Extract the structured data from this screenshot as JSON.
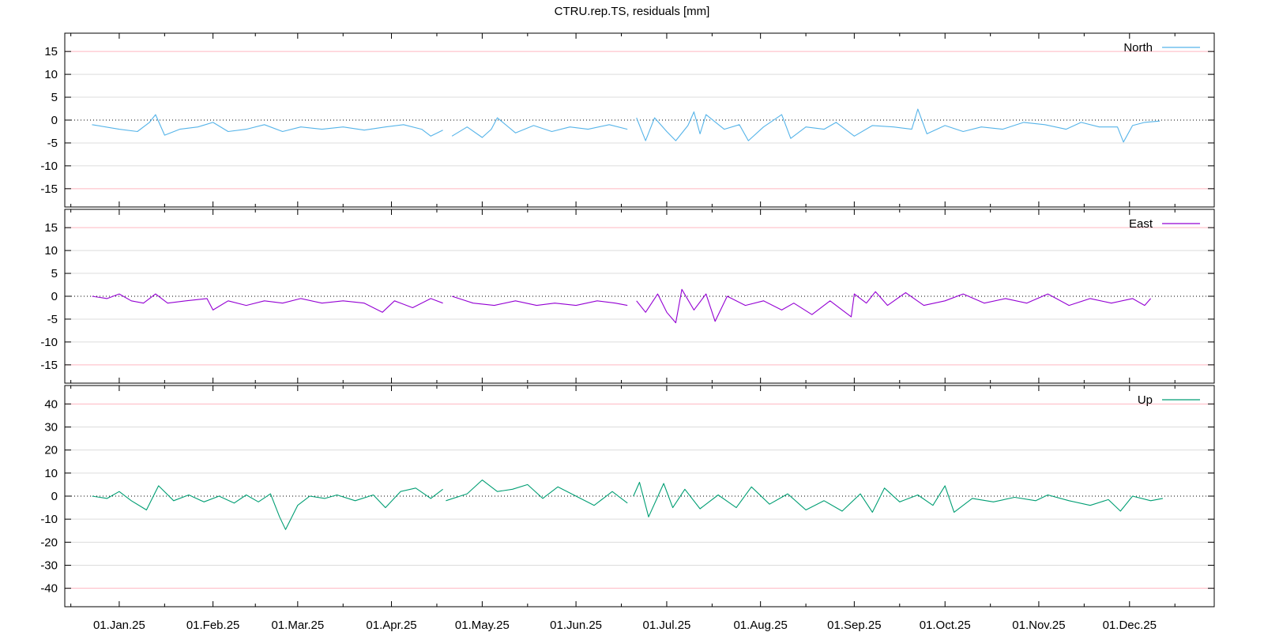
{
  "title": "CTRU.rep.TS, residuals [mm]",
  "x_tick_labels": [
    "01.Jan.25",
    "01.Feb.25",
    "01.Mar.25",
    "01.Apr.25",
    "01.May.25",
    "01.Jun.25",
    "01.Jul.25",
    "01.Aug.25",
    "01.Sep.25",
    "01.Oct.25",
    "01.Nov.25",
    "01.Dec.25"
  ],
  "chart_data": [
    {
      "type": "line",
      "series": [
        {
          "name": "North",
          "color": "#56b4e9",
          "points": [
            [
              "2024-12-23",
              -1.0
            ],
            [
              "2025-01-01",
              -2.0
            ],
            [
              "2025-01-07",
              -2.5
            ],
            [
              "2025-01-11",
              -0.5
            ],
            [
              "2025-01-13",
              1.2
            ],
            [
              "2025-01-16",
              -3.3
            ],
            [
              "2025-01-21",
              -2.0
            ],
            [
              "2025-01-27",
              -1.5
            ],
            [
              "2025-02-01",
              -0.5
            ],
            [
              "2025-02-06",
              -2.5
            ],
            [
              "2025-02-12",
              -2.0
            ],
            [
              "2025-02-18",
              -1.0
            ],
            [
              "2025-02-24",
              -2.5
            ],
            [
              "2025-03-02",
              -1.5
            ],
            [
              "2025-03-09",
              -2.0
            ],
            [
              "2025-03-16",
              -1.5
            ],
            [
              "2025-03-23",
              -2.2
            ],
            [
              "2025-03-30",
              -1.5
            ],
            [
              "2025-04-05",
              -1.0
            ],
            [
              "2025-04-11",
              -2.0
            ],
            [
              "2025-04-14",
              -3.5
            ],
            [
              "2025-04-18",
              -2.2
            ],
            [
              null,
              null
            ],
            [
              "2025-04-21",
              -3.5
            ],
            [
              "2025-04-26",
              -1.5
            ],
            [
              "2025-05-01",
              -3.8
            ],
            [
              "2025-05-04",
              -2.0
            ],
            [
              "2025-05-06",
              0.5
            ],
            [
              "2025-05-12",
              -2.8
            ],
            [
              "2025-05-18",
              -1.2
            ],
            [
              "2025-05-24",
              -2.5
            ],
            [
              "2025-05-30",
              -1.5
            ],
            [
              "2025-06-05",
              -2.0
            ],
            [
              "2025-06-12",
              -1.0
            ],
            [
              "2025-06-18",
              -2.0
            ],
            [
              null,
              null
            ],
            [
              "2025-06-21",
              0.5
            ],
            [
              "2025-06-24",
              -4.5
            ],
            [
              "2025-06-27",
              0.5
            ],
            [
              "2025-07-01",
              -2.5
            ],
            [
              "2025-07-04",
              -4.5
            ],
            [
              "2025-07-08",
              -1.2
            ],
            [
              "2025-07-10",
              1.8
            ],
            [
              "2025-07-12",
              -3.0
            ],
            [
              "2025-07-14",
              1.2
            ],
            [
              "2025-07-20",
              -2.0
            ],
            [
              "2025-07-25",
              -1.0
            ],
            [
              "2025-07-28",
              -4.5
            ],
            [
              "2025-08-02",
              -1.5
            ],
            [
              "2025-08-08",
              1.2
            ],
            [
              "2025-08-11",
              -4.0
            ],
            [
              "2025-08-16",
              -1.5
            ],
            [
              "2025-08-22",
              -2.0
            ],
            [
              "2025-08-26",
              -0.5
            ],
            [
              "2025-09-01",
              -3.5
            ],
            [
              "2025-09-07",
              -1.2
            ],
            [
              "2025-09-14",
              -1.5
            ],
            [
              "2025-09-20",
              -2.0
            ],
            [
              "2025-09-22",
              2.4
            ],
            [
              "2025-09-25",
              -3.0
            ],
            [
              "2025-10-01",
              -1.2
            ],
            [
              "2025-10-07",
              -2.5
            ],
            [
              "2025-10-13",
              -1.5
            ],
            [
              "2025-10-20",
              -2.0
            ],
            [
              "2025-10-27",
              -0.5
            ],
            [
              "2025-11-03",
              -1.0
            ],
            [
              "2025-11-10",
              -2.0
            ],
            [
              "2025-11-15",
              -0.5
            ],
            [
              "2025-11-21",
              -1.5
            ],
            [
              "2025-11-27",
              -1.5
            ],
            [
              "2025-11-29",
              -4.8
            ],
            [
              "2025-12-02",
              -1.2
            ],
            [
              "2025-12-06",
              -0.5
            ],
            [
              "2025-12-11",
              -0.2
            ]
          ]
        }
      ],
      "ylim": [
        -19,
        19
      ],
      "yticks": [
        -15,
        -10,
        -5,
        0,
        5,
        10,
        15
      ],
      "legend": "top-right"
    },
    {
      "type": "line",
      "series": [
        {
          "name": "East",
          "color": "#9400d3",
          "points": [
            [
              "2024-12-23",
              0.0
            ],
            [
              "2024-12-28",
              -0.5
            ],
            [
              "2025-01-01",
              0.5
            ],
            [
              "2025-01-05",
              -1.0
            ],
            [
              "2025-01-09",
              -1.5
            ],
            [
              "2025-01-13",
              0.5
            ],
            [
              "2025-01-17",
              -1.5
            ],
            [
              "2025-01-23",
              -1.0
            ],
            [
              "2025-01-30",
              -0.5
            ],
            [
              "2025-02-01",
              -3.0
            ],
            [
              "2025-02-06",
              -1.0
            ],
            [
              "2025-02-12",
              -2.0
            ],
            [
              "2025-02-18",
              -1.0
            ],
            [
              "2025-02-24",
              -1.5
            ],
            [
              "2025-03-02",
              -0.5
            ],
            [
              "2025-03-09",
              -1.5
            ],
            [
              "2025-03-16",
              -1.0
            ],
            [
              "2025-03-23",
              -1.5
            ],
            [
              "2025-03-29",
              -3.5
            ],
            [
              "2025-04-02",
              -1.0
            ],
            [
              "2025-04-08",
              -2.5
            ],
            [
              "2025-04-14",
              -0.5
            ],
            [
              "2025-04-18",
              -1.5
            ],
            [
              null,
              null
            ],
            [
              "2025-04-21",
              0.0
            ],
            [
              "2025-04-28",
              -1.5
            ],
            [
              "2025-05-05",
              -2.0
            ],
            [
              "2025-05-12",
              -1.0
            ],
            [
              "2025-05-19",
              -2.0
            ],
            [
              "2025-05-25",
              -1.5
            ],
            [
              "2025-06-01",
              -2.0
            ],
            [
              "2025-06-08",
              -1.0
            ],
            [
              "2025-06-14",
              -1.5
            ],
            [
              "2025-06-18",
              -2.0
            ],
            [
              null,
              null
            ],
            [
              "2025-06-21",
              -1.0
            ],
            [
              "2025-06-24",
              -3.5
            ],
            [
              "2025-06-28",
              0.5
            ],
            [
              "2025-07-01",
              -3.5
            ],
            [
              "2025-07-04",
              -5.8
            ],
            [
              "2025-07-06",
              1.5
            ],
            [
              "2025-07-10",
              -3.0
            ],
            [
              "2025-07-14",
              0.5
            ],
            [
              "2025-07-17",
              -5.5
            ],
            [
              "2025-07-21",
              0.0
            ],
            [
              "2025-07-27",
              -2.0
            ],
            [
              "2025-08-02",
              -1.0
            ],
            [
              "2025-08-08",
              -3.0
            ],
            [
              "2025-08-12",
              -1.5
            ],
            [
              "2025-08-18",
              -4.0
            ],
            [
              "2025-08-24",
              -1.0
            ],
            [
              "2025-08-31",
              -4.5
            ],
            [
              "2025-09-01",
              0.5
            ],
            [
              "2025-09-05",
              -1.5
            ],
            [
              "2025-09-08",
              1.0
            ],
            [
              "2025-09-12",
              -2.0
            ],
            [
              "2025-09-18",
              0.8
            ],
            [
              "2025-09-24",
              -2.0
            ],
            [
              "2025-10-01",
              -1.0
            ],
            [
              "2025-10-07",
              0.5
            ],
            [
              "2025-10-14",
              -1.5
            ],
            [
              "2025-10-21",
              -0.5
            ],
            [
              "2025-10-28",
              -1.5
            ],
            [
              "2025-11-04",
              0.5
            ],
            [
              "2025-11-11",
              -2.0
            ],
            [
              "2025-11-18",
              -0.5
            ],
            [
              "2025-11-25",
              -1.5
            ],
            [
              "2025-12-02",
              -0.5
            ],
            [
              "2025-12-06",
              -2.0
            ],
            [
              "2025-12-08",
              -0.5
            ]
          ]
        }
      ],
      "ylim": [
        -19,
        19
      ],
      "yticks": [
        -15,
        -10,
        -5,
        0,
        5,
        10,
        15
      ],
      "legend": "top-right"
    },
    {
      "type": "line",
      "series": [
        {
          "name": "Up",
          "color": "#009e73",
          "points": [
            [
              "2024-12-23",
              0.0
            ],
            [
              "2024-12-28",
              -1.0
            ],
            [
              "2025-01-01",
              2.0
            ],
            [
              "2025-01-05",
              -2.0
            ],
            [
              "2025-01-10",
              -6.0
            ],
            [
              "2025-01-14",
              4.5
            ],
            [
              "2025-01-19",
              -2.0
            ],
            [
              "2025-01-24",
              0.5
            ],
            [
              "2025-01-29",
              -2.5
            ],
            [
              "2025-02-03",
              0.0
            ],
            [
              "2025-02-08",
              -3.0
            ],
            [
              "2025-02-12",
              0.5
            ],
            [
              "2025-02-16",
              -2.5
            ],
            [
              "2025-02-20",
              1.0
            ],
            [
              "2025-02-23",
              -9.0
            ],
            [
              "2025-02-25",
              -14.5
            ],
            [
              "2025-03-01",
              -4.0
            ],
            [
              "2025-03-05",
              0.0
            ],
            [
              "2025-03-10",
              -1.0
            ],
            [
              "2025-03-14",
              0.5
            ],
            [
              "2025-03-20",
              -2.0
            ],
            [
              "2025-03-26",
              0.5
            ],
            [
              "2025-03-30",
              -5.0
            ],
            [
              "2025-04-04",
              2.0
            ],
            [
              "2025-04-09",
              3.5
            ],
            [
              "2025-04-14",
              -1.0
            ],
            [
              "2025-04-18",
              3.0
            ],
            [
              null,
              null
            ],
            [
              "2025-04-19",
              -2.0
            ],
            [
              "2025-04-26",
              1.0
            ],
            [
              "2025-05-01",
              7.0
            ],
            [
              "2025-05-06",
              2.0
            ],
            [
              "2025-05-11",
              3.0
            ],
            [
              "2025-05-16",
              5.0
            ],
            [
              "2025-05-21",
              -1.0
            ],
            [
              "2025-05-26",
              4.0
            ],
            [
              "2025-06-01",
              0.0
            ],
            [
              "2025-06-07",
              -4.0
            ],
            [
              "2025-06-13",
              2.0
            ],
            [
              "2025-06-18",
              -3.0
            ],
            [
              null,
              null
            ],
            [
              "2025-06-20",
              0.0
            ],
            [
              "2025-06-22",
              6.0
            ],
            [
              "2025-06-25",
              -9.0
            ],
            [
              "2025-06-30",
              5.5
            ],
            [
              "2025-07-03",
              -5.0
            ],
            [
              "2025-07-07",
              3.0
            ],
            [
              "2025-07-12",
              -5.5
            ],
            [
              "2025-07-18",
              0.5
            ],
            [
              "2025-07-24",
              -5.0
            ],
            [
              "2025-07-29",
              4.0
            ],
            [
              "2025-08-04",
              -3.5
            ],
            [
              "2025-08-10",
              1.0
            ],
            [
              "2025-08-16",
              -6.0
            ],
            [
              "2025-08-22",
              -2.0
            ],
            [
              "2025-08-28",
              -6.5
            ],
            [
              "2025-09-03",
              1.0
            ],
            [
              "2025-09-07",
              -7.0
            ],
            [
              "2025-09-11",
              3.5
            ],
            [
              "2025-09-16",
              -2.5
            ],
            [
              "2025-09-22",
              0.5
            ],
            [
              "2025-09-27",
              -4.0
            ],
            [
              "2025-10-01",
              4.5
            ],
            [
              "2025-10-04",
              -7.0
            ],
            [
              "2025-10-10",
              -1.0
            ],
            [
              "2025-10-17",
              -2.5
            ],
            [
              "2025-10-24",
              -0.5
            ],
            [
              "2025-10-31",
              -2.0
            ],
            [
              "2025-11-04",
              0.5
            ],
            [
              "2025-11-11",
              -2.0
            ],
            [
              "2025-11-18",
              -4.0
            ],
            [
              "2025-11-24",
              -1.5
            ],
            [
              "2025-11-28",
              -6.5
            ],
            [
              "2025-12-02",
              0.0
            ],
            [
              "2025-12-08",
              -2.0
            ],
            [
              "2025-12-12",
              -1.0
            ]
          ]
        }
      ],
      "ylim": [
        -48,
        48
      ],
      "yticks": [
        -40,
        -30,
        -20,
        -10,
        0,
        10,
        20,
        30,
        40
      ],
      "legend": "top-right"
    }
  ]
}
